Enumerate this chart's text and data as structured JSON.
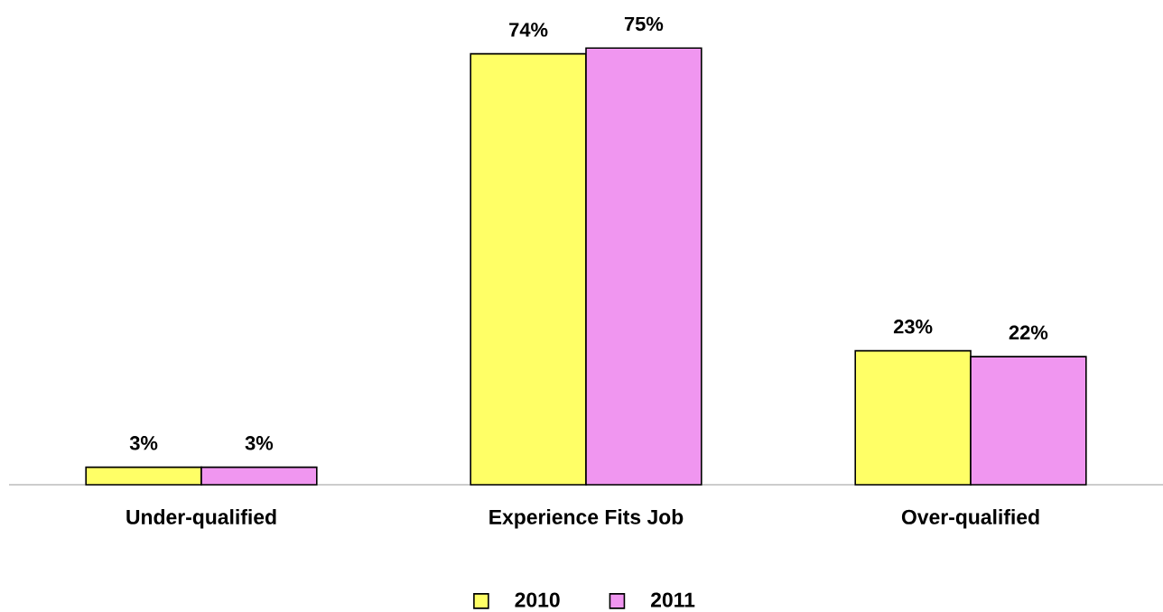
{
  "chart_data": {
    "type": "bar",
    "categories": [
      "Under-qualified",
      "Experience Fits Job",
      "Over-qualified"
    ],
    "series": [
      {
        "name": "2010",
        "color": "#ffff66",
        "values": [
          3,
          74,
          23
        ],
        "value_labels": [
          "3%",
          "74%",
          "23%"
        ]
      },
      {
        "name": "2011",
        "color": "#f096f0",
        "values": [
          3,
          75,
          22
        ],
        "value_labels": [
          "3%",
          "75%",
          "22%"
        ]
      }
    ],
    "legend": "bottom",
    "tick_labels": "x"
  }
}
